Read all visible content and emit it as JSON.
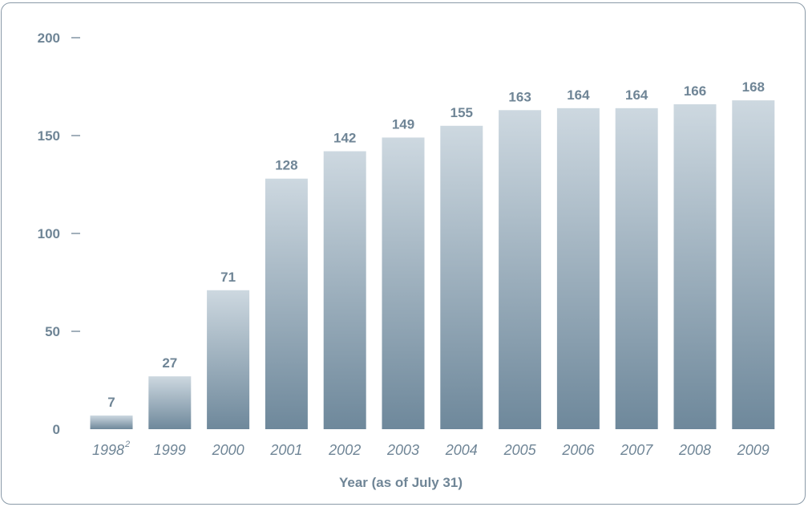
{
  "chart_data": {
    "type": "bar",
    "categories": [
      "1998",
      "1999",
      "2000",
      "2001",
      "2002",
      "2003",
      "2004",
      "2005",
      "2006",
      "2007",
      "2008",
      "2009"
    ],
    "category_superscripts": [
      "2",
      "",
      "",
      "",
      "",
      "",
      "",
      "",
      "",
      "",
      "",
      ""
    ],
    "values": [
      7,
      27,
      71,
      128,
      142,
      149,
      155,
      163,
      164,
      164,
      166,
      168
    ],
    "data_labels": [
      "7",
      "27",
      "71",
      "128",
      "142",
      "149",
      "155",
      "163",
      "164",
      "164",
      "166",
      "168"
    ],
    "xlabel": "Year (as of July 31)",
    "ylabel": "",
    "ylim": [
      0,
      200
    ],
    "yticks": [
      0,
      50,
      100,
      150,
      200
    ],
    "ytick_labels": [
      "0",
      "50",
      "100",
      "150",
      "200"
    ],
    "grid": false,
    "colors": {
      "bar_top": "#cdd8e0",
      "bar_bottom": "#6e889b",
      "text": "#6f8596",
      "frame": "#8a9aa8"
    }
  }
}
